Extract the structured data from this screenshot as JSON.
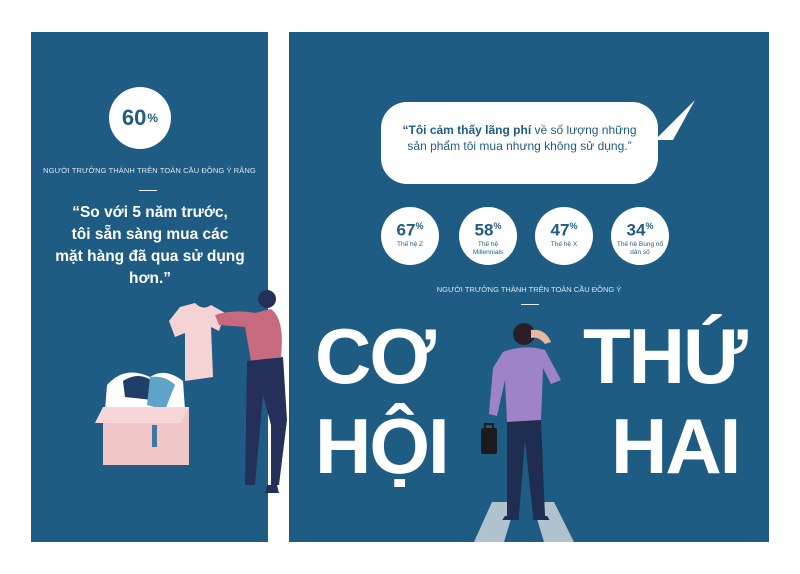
{
  "left": {
    "stat_value": "60",
    "stat_unit": "%",
    "caption": "NGƯỜI TRƯỞNG THÀNH TRÊN TOÀN CẦU ĐỒNG Ý RẰNG",
    "quote_lines": [
      "“So với 5 năm trước,",
      "tôi sẵn sàng mua các",
      "mặt hàng đã qua sử dụng hơn.”"
    ]
  },
  "right": {
    "bubble_bold": "“Tôi cảm thấy lãng phí",
    "bubble_rest": " về số lượng những sản phẩm tôi mua nhưng không sử dụng.”",
    "stats": [
      {
        "value": "67",
        "unit": "%",
        "label": "Thế hệ Z"
      },
      {
        "value": "58",
        "unit": "%",
        "label": "Thế hệ Millennials"
      },
      {
        "value": "47",
        "unit": "%",
        "label": "Thế hệ X"
      },
      {
        "value": "34",
        "unit": "%",
        "label": "Thế hệ Bùng nổ dân số"
      }
    ],
    "caption": "NGƯỜI TRƯỞNG THÀNH TRÊN TOÀN CẦU ĐỒNG Ý",
    "headline": {
      "w1": "CƠ",
      "w2": "HỘI",
      "w3": "THỨ",
      "w4": "HAI"
    }
  },
  "colors": {
    "panel": "#1f5c84",
    "text": "#ffffff",
    "accent": "#e3b6b8"
  }
}
